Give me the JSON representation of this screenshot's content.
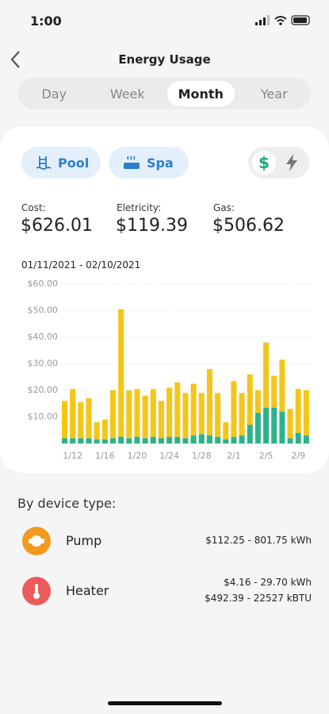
{
  "status_bar": {
    "time": "1:00"
  },
  "header": {
    "title": "Energy Usage"
  },
  "tabs": {
    "options": [
      "Day",
      "Week",
      "Month",
      "Year"
    ],
    "selected": 2
  },
  "filters": [
    "Pool",
    "Spa"
  ],
  "units_toggle": [
    "$"
  ],
  "summary": [
    {
      "label": "Cost:",
      "value": "$626.01"
    },
    {
      "label": "Eletricity:",
      "value": "$119.39"
    },
    {
      "label": "Gas:",
      "value": "$506.62"
    }
  ],
  "chart_data": {
    "type": "bar",
    "stacked": true,
    "subtitle": "01/11/2021 - 02/10/2021",
    "categories": [
      null,
      "1/12",
      null,
      null,
      null,
      "1/16",
      null,
      null,
      null,
      "1/20",
      null,
      null,
      null,
      "1/24",
      null,
      null,
      null,
      "1/28",
      null,
      null,
      null,
      "2/1",
      null,
      null,
      null,
      "2/5",
      null,
      null,
      null,
      "2/9",
      null
    ],
    "series": [
      {
        "color": "#2db38a",
        "values": [
          2,
          2,
          2,
          2,
          1.5,
          1.5,
          2,
          2.5,
          2,
          2.5,
          2,
          2.5,
          2,
          2.5,
          2.5,
          2,
          3,
          3.5,
          3,
          2.5,
          1.5,
          2.5,
          3,
          7,
          11.5,
          13.5,
          13.5,
          12,
          2,
          4,
          3
        ]
      },
      {
        "color": "#f5c518",
        "values": [
          14,
          18.5,
          13.5,
          15,
          6.5,
          7.5,
          18,
          48,
          18,
          18,
          16,
          18,
          14,
          18.5,
          20.5,
          17,
          19.5,
          15.5,
          25,
          16.5,
          6.5,
          21,
          16,
          19,
          8.5,
          24.5,
          12,
          19.5,
          11,
          16.5,
          17
        ]
      }
    ],
    "ylim": [
      0,
      60
    ],
    "yticks": [
      {
        "value": 10,
        "label": "$10.00"
      },
      {
        "value": 20,
        "label": "$20.00"
      },
      {
        "value": 30,
        "label": "$30.00"
      },
      {
        "value": 40,
        "label": "$40.00"
      },
      {
        "value": 50,
        "label": "$50.00"
      },
      {
        "value": 60,
        "label": "$60.00"
      }
    ],
    "grid": true
  },
  "devices": {
    "title": "By device type:",
    "items": [
      {
        "name": "Pump",
        "color": "#f39a1e",
        "lines": [
          "$112.25 - 801.75 kWh"
        ]
      },
      {
        "name": "Heater",
        "color": "#ec5b5b",
        "lines": [
          "$4.16 - 29.70 kWh",
          "$492.39 - 22527 kBTU"
        ]
      }
    ]
  }
}
